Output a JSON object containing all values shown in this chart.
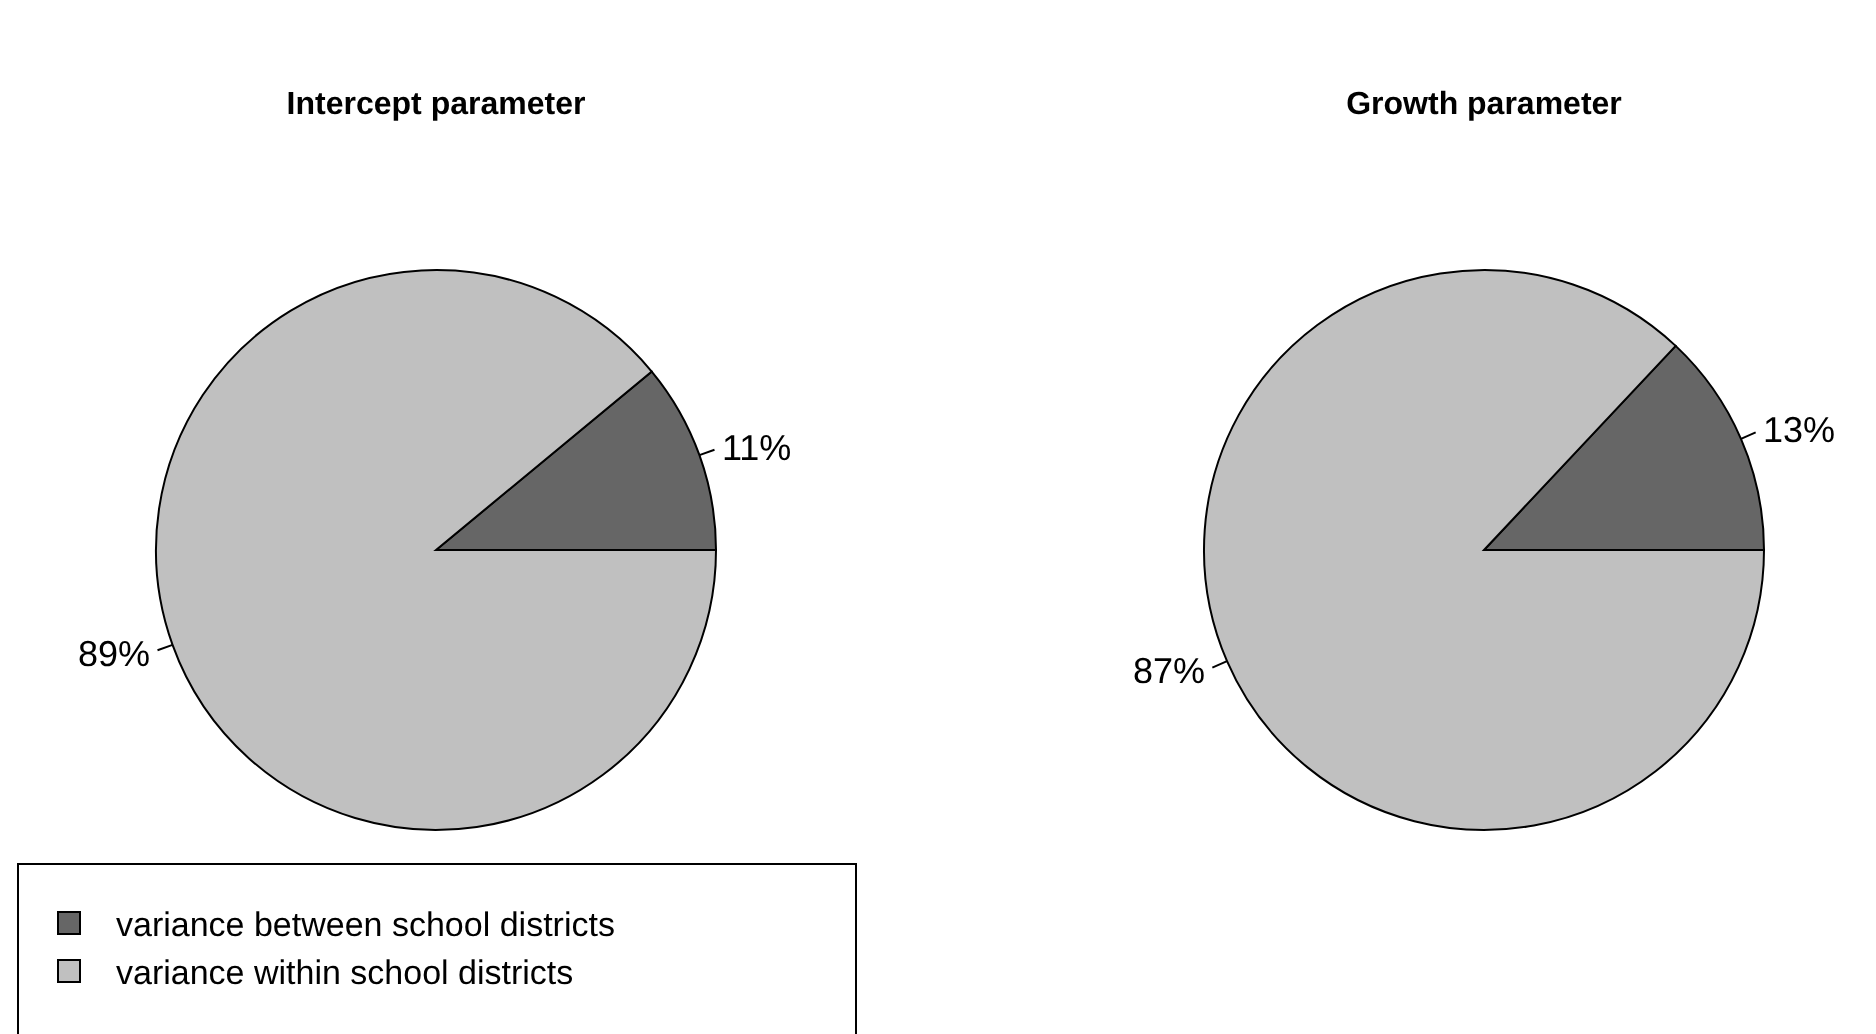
{
  "chart_data": [
    {
      "type": "pie",
      "title": "Intercept parameter",
      "categories": [
        "variance between school districts",
        "variance within school districts"
      ],
      "values": [
        11,
        89
      ],
      "colors": [
        "#666666",
        "#c0c0c0"
      ],
      "value_labels": [
        "11%",
        "89%"
      ],
      "legend": "bottom left"
    },
    {
      "type": "pie",
      "title": "Growth parameter",
      "categories": [
        null,
        null
      ],
      "values": [
        13,
        87
      ],
      "colors": [
        "#666666",
        "#c0c0c0"
      ],
      "value_labels": [
        "13%",
        "87%"
      ]
    }
  ]
}
